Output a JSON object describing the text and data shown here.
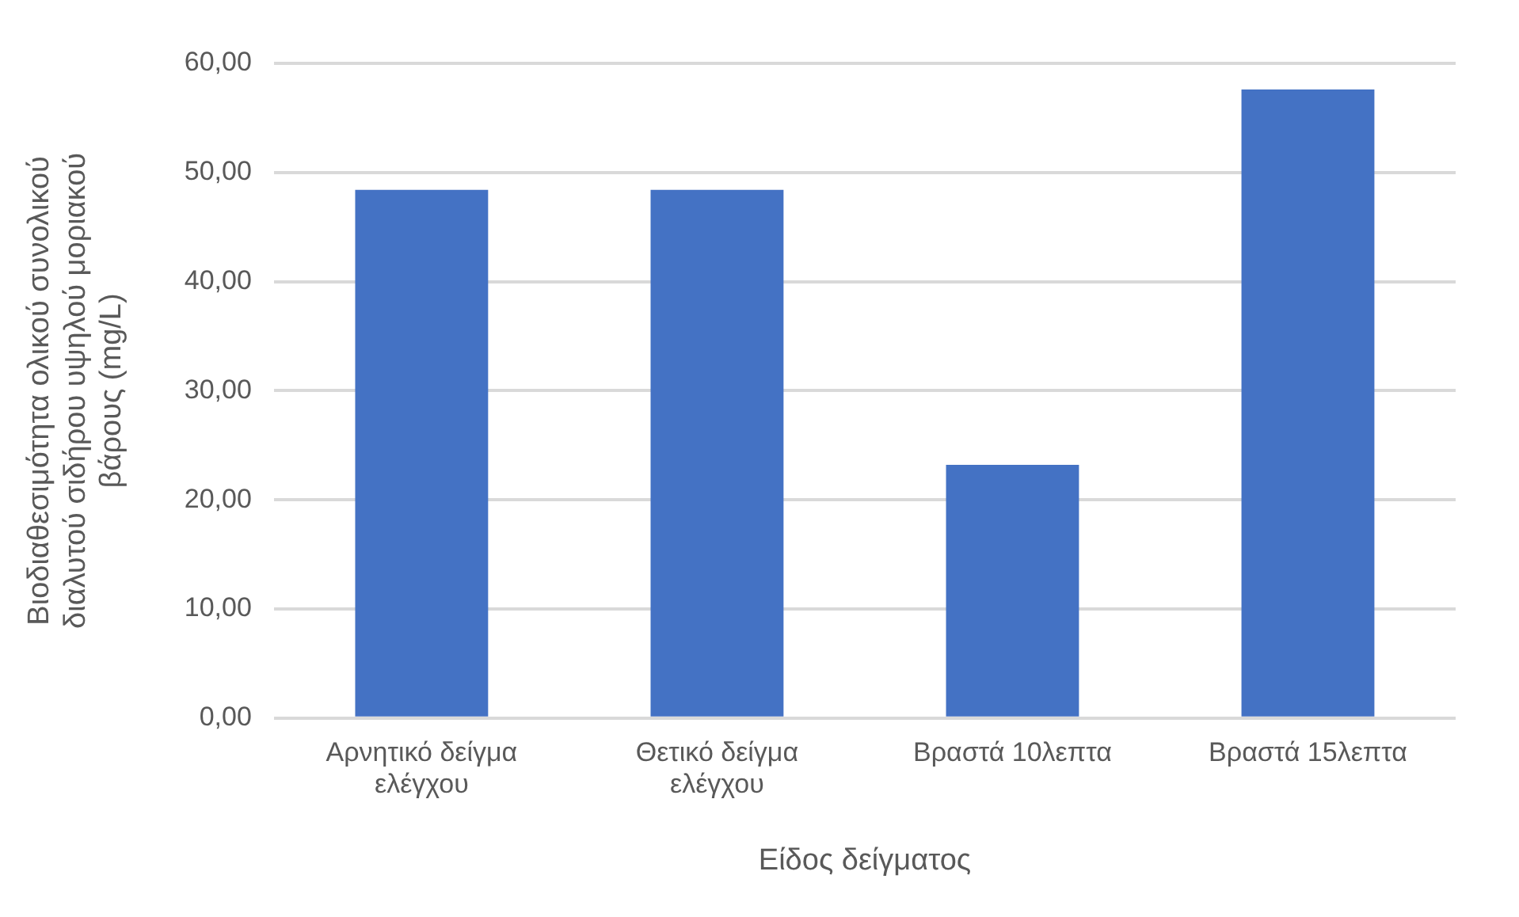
{
  "chart_data": {
    "type": "bar",
    "xlabel": "Είδος δείγματος",
    "ylabel": "Βιοδιαθεσιμότητα ολικού συνολικού διαλυτού σιδήρου υψηλού μοριακού βάρους (mg/L)",
    "categories": [
      "Αρνητικό δείγμα ελέγχου",
      "Θετικό δείγμα ελέγχου",
      "Βραστά 10λεπτα",
      "Βραστά 15λεπτα"
    ],
    "values": [
      48.4,
      48.4,
      23.2,
      57.6
    ],
    "color": "#4472c4",
    "ylim": [
      0,
      60
    ],
    "yticks": [
      {
        "value": 0,
        "label": "0,00"
      },
      {
        "value": 10,
        "label": "10,00"
      },
      {
        "value": 20,
        "label": "20,00"
      },
      {
        "value": 30,
        "label": "30,00"
      },
      {
        "value": 40,
        "label": "40,00"
      },
      {
        "value": 50,
        "label": "50,00"
      },
      {
        "value": 60,
        "label": "60,00"
      }
    ],
    "grid": "y",
    "legend": false
  }
}
